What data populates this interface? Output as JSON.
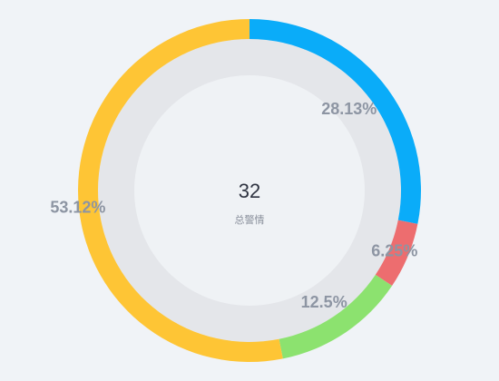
{
  "chart_data": {
    "type": "pie",
    "center_value": "32",
    "center_caption": "总警情",
    "slices": [
      {
        "label": "28.13%",
        "value": 28.13,
        "color": "#0aacf9"
      },
      {
        "label": "6.25%",
        "value": 6.25,
        "color": "#ed6d6f"
      },
      {
        "label": "12.5%",
        "value": 12.5,
        "color": "#8ce26f"
      },
      {
        "label": "53.12%",
        "value": 53.12,
        "color": "#fec535"
      }
    ]
  }
}
